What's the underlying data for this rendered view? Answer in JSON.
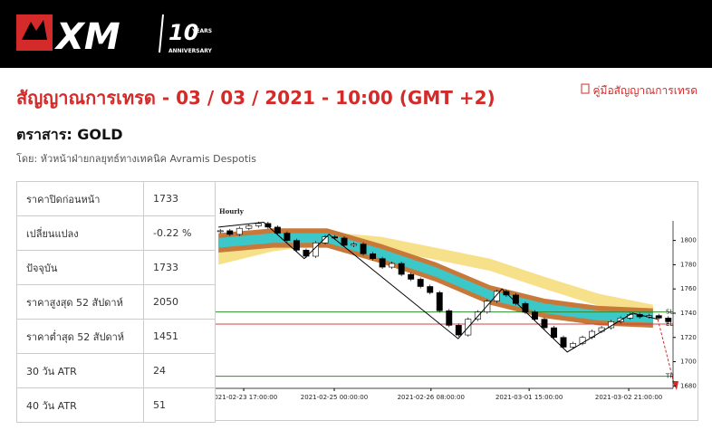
{
  "header": {
    "brand": "XM",
    "badge": "10",
    "badge_sub": "YEARS",
    "anniversary": "ANNIVERSARY"
  },
  "title": "สัญญาณการเทรด - 03 / 03 / 2021 - 10:00 (GMT +2)",
  "guide_link": "คู่มือสัญญาณการเทรด",
  "instrument": "ตราสาร: GOLD",
  "author": "โดย: หัวหน้าฝ่ายกลยุทธ์ทางเทคนิค Avramis Despotis",
  "table": {
    "rows": [
      [
        "ราคาปิดก่อนหน้า",
        "1733"
      ],
      [
        "เปลี่ยนแปลง",
        "-0.22 %"
      ],
      [
        "ปัจจุบัน",
        "1733"
      ],
      [
        "ราคาสูงสุด 52 สัปดาห์",
        "2050"
      ],
      [
        "ราคาต่ำสุด 52 สัปดาห์",
        "1451"
      ],
      [
        "30 วัน ATR",
        "24"
      ],
      [
        "40 วัน ATR",
        "51"
      ]
    ]
  },
  "chart": {
    "type": "candlestick",
    "label": "Hourly",
    "xlim": [
      0,
      96
    ],
    "ylim": [
      1678,
      1846
    ],
    "yticks": [
      1680,
      1700,
      1720,
      1740,
      1760,
      1780,
      1800
    ],
    "xticks": [
      {
        "value": 5.9,
        "label": "2021-02-23 17:00:00"
      },
      {
        "value": 24.9,
        "label": "2021-02-25 00:00:00"
      },
      {
        "value": 45.2,
        "label": "2021-02-26 08:00:00"
      },
      {
        "value": 65.8,
        "label": "2021-03-01 15:00:00"
      },
      {
        "value": 86.7,
        "label": "2021-03-02 21:00:00"
      }
    ],
    "candles": {
      "x": [
        1,
        3,
        5,
        7,
        9,
        11,
        13,
        15,
        17,
        19,
        21,
        23,
        25,
        27,
        29,
        31,
        33,
        35,
        37,
        39,
        41,
        43,
        45,
        47,
        49,
        51,
        53,
        55,
        57,
        59,
        61,
        63,
        65,
        67,
        69,
        71,
        73,
        75,
        77,
        79,
        81,
        83,
        85,
        87,
        89,
        91,
        93,
        95
      ],
      "close": [
        1808,
        1805,
        1810,
        1812,
        1814,
        1811,
        1806,
        1800,
        1792,
        1787,
        1798,
        1803,
        1802,
        1796,
        1797,
        1789,
        1785,
        1778,
        1781,
        1772,
        1768,
        1762,
        1757,
        1742,
        1730,
        1722,
        1735,
        1741,
        1750,
        1758,
        1755,
        1748,
        1741,
        1735,
        1728,
        1720,
        1712,
        1715,
        1720,
        1725,
        1728,
        1733,
        1736,
        1739,
        1737,
        1738,
        1736,
        1733
      ],
      "up_color": "#ffffff",
      "down_color": "#000000"
    },
    "bands": {
      "x": [
        0.6,
        12,
        23.4,
        34.8,
        46.2,
        57.6,
        69,
        80.4,
        91.8
      ],
      "series": [
        {
          "color": "#f7e08a",
          "upper": [
            1790,
            1801,
            1807,
            1803,
            1794,
            1785,
            1770,
            1756,
            1747
          ],
          "lower": [
            1780,
            1791,
            1797,
            1793,
            1784,
            1775,
            1760,
            1746,
            1737
          ]
        },
        {
          "color": "#c8793a",
          "upper": [
            1806,
            1810,
            1810,
            1797,
            1782,
            1763,
            1752,
            1746,
            1744
          ],
          "lower": [
            1790,
            1794,
            1794,
            1781,
            1766,
            1747,
            1736,
            1730,
            1728
          ]
        },
        {
          "color": "#3cc8c8",
          "upper": [
            1802,
            1806,
            1806,
            1793,
            1778,
            1759,
            1748,
            1742,
            1740
          ],
          "lower": [
            1794,
            1798,
            1798,
            1785,
            1770,
            1751,
            1740,
            1734,
            1732
          ]
        }
      ]
    },
    "zigzag": {
      "x": [
        0.6,
        10.1,
        18.6,
        23.8,
        50.9,
        60.1,
        73.8,
        87.5,
        92.8
      ],
      "values": [
        1811,
        1815,
        1785,
        1805,
        1719,
        1760,
        1708,
        1740,
        1735
      ],
      "color": "#000000"
    },
    "levels": [
      {
        "name": "SL",
        "value": 1741,
        "color": "#2e8b2e"
      },
      {
        "name": "EL",
        "value": 1731,
        "color": "#d04040"
      },
      {
        "name": "TP",
        "value": 1688,
        "color": "#2e8b2e"
      }
    ]
  }
}
